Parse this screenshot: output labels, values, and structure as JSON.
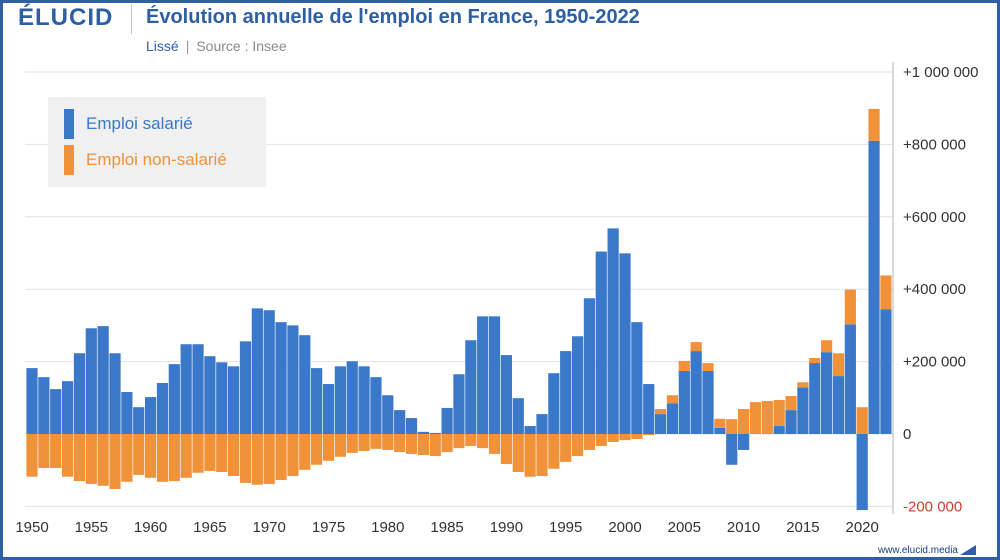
{
  "branding": {
    "logo": "ÉLUCID",
    "url": "www.elucid.media",
    "frame_color": "#2e5fa3"
  },
  "chart_data": {
    "type": "bar",
    "stacked": true,
    "title": "Évolution annuelle de l'emploi en France, 1950-2022",
    "subtitle_smoothing": "Lissé",
    "subtitle_separator": "|",
    "subtitle_source": "Source : Insee",
    "grid": true,
    "legend_position": "top-left",
    "ylim": [
      -200000,
      1000000
    ],
    "y_ticks": [
      1000000,
      800000,
      600000,
      400000,
      200000,
      0,
      -200000
    ],
    "y_tick_labels": [
      "+1 000 000",
      "+800 000",
      "+600 000",
      "+400 000",
      "+200 000",
      "0",
      "-200 000"
    ],
    "x_tick_labels": [
      "1950",
      "1955",
      "1960",
      "1965",
      "1970",
      "1975",
      "1980",
      "1985",
      "1990",
      "1995",
      "2000",
      "2005",
      "2010",
      "2015",
      "2020"
    ],
    "x": [
      1950,
      1951,
      1952,
      1953,
      1954,
      1955,
      1956,
      1957,
      1958,
      1959,
      1960,
      1961,
      1962,
      1963,
      1964,
      1965,
      1966,
      1967,
      1968,
      1969,
      1970,
      1971,
      1972,
      1973,
      1974,
      1975,
      1976,
      1977,
      1978,
      1979,
      1980,
      1981,
      1982,
      1983,
      1984,
      1985,
      1986,
      1987,
      1988,
      1989,
      1990,
      1991,
      1992,
      1993,
      1994,
      1995,
      1996,
      1997,
      1998,
      1999,
      2000,
      2001,
      2002,
      2003,
      2004,
      2005,
      2006,
      2007,
      2008,
      2009,
      2010,
      2011,
      2012,
      2013,
      2014,
      2015,
      2016,
      2017,
      2018,
      2019,
      2020,
      2021,
      2022
    ],
    "series": [
      {
        "name": "Emploi salarié",
        "color": "#3a78c9",
        "values": [
          182000,
          157000,
          124000,
          146000,
          223000,
          292000,
          298000,
          223000,
          116000,
          74000,
          102000,
          141000,
          193000,
          248000,
          248000,
          215000,
          198000,
          187000,
          256000,
          347000,
          342000,
          309000,
          300000,
          273000,
          182000,
          138000,
          187000,
          201000,
          187000,
          157000,
          107000,
          66000,
          44000,
          6000,
          3000,
          72000,
          165000,
          259000,
          325000,
          325000,
          218000,
          99000,
          22000,
          55000,
          168000,
          229000,
          270000,
          375000,
          504000,
          568000,
          499000,
          309000,
          138000,
          55000,
          85000,
          174000,
          229000,
          174000,
          17000,
          -85000,
          -44000,
          0,
          0,
          22000,
          66000,
          129000,
          196000,
          226000,
          160000,
          303000,
          -210000,
          810000,
          344000
        ]
      },
      {
        "name": "Emploi non-salarié",
        "color": "#f0923a",
        "values": [
          -118000,
          -94000,
          -94000,
          -118000,
          -130000,
          -138000,
          -143000,
          -152000,
          -132000,
          -113000,
          -121000,
          -132000,
          -130000,
          -121000,
          -107000,
          -102000,
          -105000,
          -116000,
          -135000,
          -140000,
          -138000,
          -127000,
          -116000,
          -99000,
          -85000,
          -74000,
          -63000,
          -52000,
          -47000,
          -41000,
          -44000,
          -50000,
          -55000,
          -58000,
          -61000,
          -50000,
          -39000,
          -33000,
          -39000,
          -55000,
          -83000,
          -105000,
          -118000,
          -116000,
          -96000,
          -77000,
          -61000,
          -44000,
          -33000,
          -22000,
          -17000,
          -14000,
          -3000,
          14000,
          22000,
          28000,
          25000,
          22000,
          25000,
          41000,
          69000,
          88000,
          91000,
          72000,
          39000,
          14000,
          14000,
          33000,
          63000,
          96000,
          74000,
          88000,
          94000
        ]
      }
    ],
    "negative_label_color": "#d23b2c"
  }
}
